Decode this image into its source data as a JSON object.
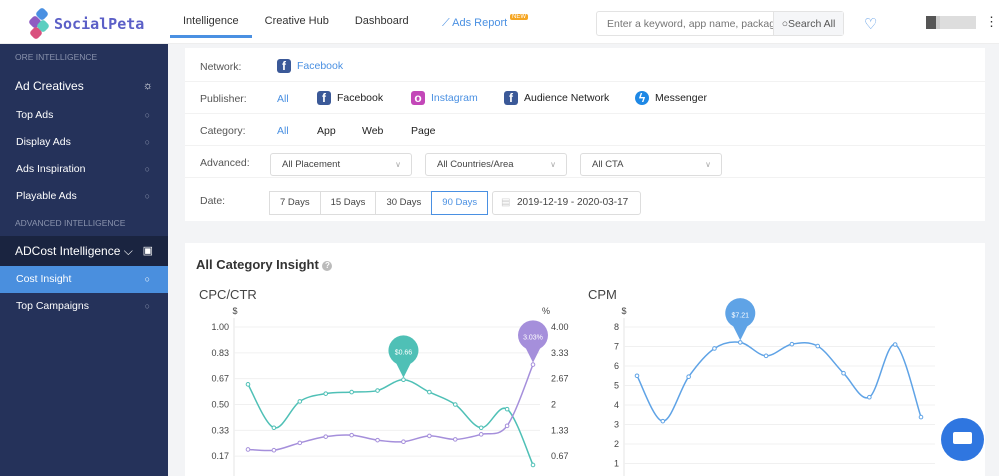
{
  "header": {
    "logo": "SocialPeta",
    "nav": [
      "Intelligence",
      "Creative Hub",
      "Dashboard"
    ],
    "ads_report": "Ads Report",
    "new_badge": "NEW",
    "search_placeholder": "Enter a keyword, app name, package",
    "search_button": "Search All"
  },
  "sidebar": {
    "section1": "ORE INTELLIGENCE",
    "group1": "Ad Creatives",
    "items1": [
      "Top Ads",
      "Display Ads",
      "Ads Inspiration",
      "Playable Ads"
    ],
    "section2": "ADVANCED INTELLIGENCE",
    "group2": "ADCost Intelligence",
    "items2": [
      "Cost Insight",
      "Top Campaigns"
    ]
  },
  "filters": {
    "network_label": "Network:",
    "network": "Facebook",
    "publisher_label": "Publisher:",
    "publishers": [
      "All",
      "Facebook",
      "Instagram",
      "Audience Network",
      "Messenger"
    ],
    "category_label": "Category:",
    "categories": [
      "All",
      "App",
      "Web",
      "Page"
    ],
    "advanced_label": "Advanced:",
    "selects": [
      "All Placement",
      "All Countries/Area",
      "All CTA"
    ],
    "date_label": "Date:",
    "date_buttons": [
      "7 Days",
      "15 Days",
      "30 Days",
      "90 Days"
    ],
    "date_selected": "90 Days",
    "date_start": "2019-12-19",
    "date_end": "2020-03-17"
  },
  "insight": {
    "title": "All Category Insight"
  },
  "chart_data": [
    {
      "type": "line",
      "title": "CPC/CTR",
      "ylabel_left": "$",
      "ylabel_right": "%",
      "yticks_left": [
        "1.00",
        "0.83",
        "0.67",
        "0.50",
        "0.33",
        "0.17"
      ],
      "yticks_right": [
        "4.00",
        "3.33",
        "2.67",
        "2",
        "1.33",
        "0.67"
      ],
      "ylim_left": [
        0,
        1
      ],
      "ylim_right": [
        0,
        4
      ],
      "grid": true,
      "series": [
        {
          "axis": "left",
          "color": "#4fc0b6",
          "values": [
            0.63,
            0.35,
            0.52,
            0.57,
            0.58,
            0.59,
            0.66,
            0.58,
            0.5,
            0.35,
            0.47,
            0.11
          ],
          "marker_label": "$0.66",
          "marker_index": 6
        },
        {
          "axis": "right",
          "color": "#a58fdb",
          "values": [
            0.84,
            0.82,
            1.01,
            1.17,
            1.21,
            1.08,
            1.04,
            1.19,
            1.1,
            1.23,
            1.45,
            3.03
          ],
          "marker_label": "3.03%",
          "marker_index": 11
        }
      ]
    },
    {
      "type": "line",
      "title": "CPM",
      "ylabel": "$",
      "yticks": [
        "8",
        "7",
        "6",
        "5",
        "4",
        "3",
        "2",
        "1"
      ],
      "ylim": [
        0,
        8
      ],
      "grid": true,
      "series": [
        {
          "color": "#5fa3e6",
          "values": [
            5.5,
            3.17,
            5.45,
            6.9,
            7.21,
            6.52,
            7.12,
            7.02,
            5.63,
            4.4,
            7.1,
            3.38
          ],
          "marker_label": "$7.21",
          "marker_index": 4
        }
      ]
    }
  ]
}
